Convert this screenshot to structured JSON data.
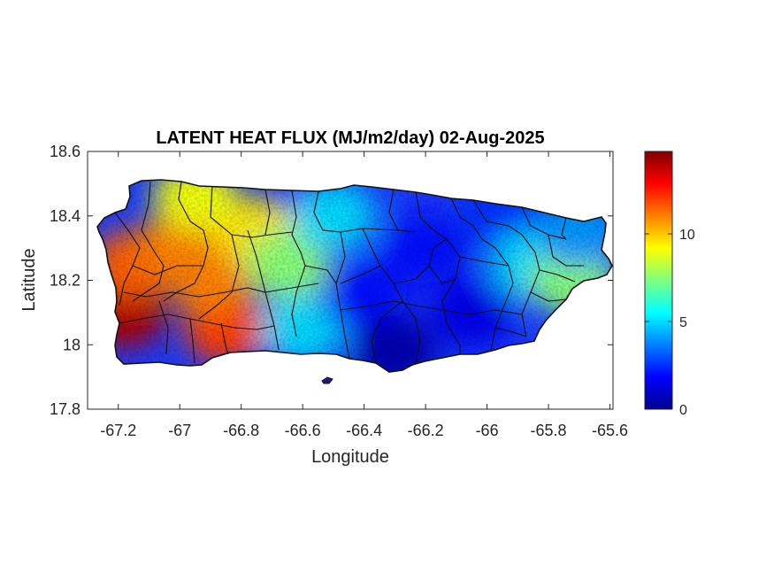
{
  "chart_data": {
    "type": "heatmap",
    "title": "LATENT HEAT FLUX (MJ/m2/day) 02-Aug-2025",
    "xlabel": "Longitude",
    "ylabel": "Latitude",
    "xlim": [
      -67.3,
      -65.59
    ],
    "ylim": [
      17.8,
      18.6
    ],
    "xticks": [
      "-67.2",
      "-67",
      "-66.8",
      "-66.6",
      "-66.4",
      "-66.2",
      "-66",
      "-65.8",
      "-65.6"
    ],
    "xtick_values": [
      -67.2,
      -67.0,
      -66.8,
      -66.6,
      -66.4,
      -66.2,
      -66.0,
      -65.8,
      -65.6
    ],
    "yticks": [
      "17.8",
      "18",
      "18.2",
      "18.4",
      "18.6"
    ],
    "ytick_values": [
      17.8,
      18.0,
      18.2,
      18.4,
      18.6
    ],
    "colorbar": {
      "range": [
        0,
        14.7
      ],
      "ticks": [
        "0",
        "5",
        "10"
      ],
      "tick_values": [
        0,
        5,
        10
      ],
      "colormap": "jet"
    },
    "region": "Puerto Rico",
    "field_samples": [
      {
        "lon": -67.18,
        "lat": 18.1,
        "value": 14
      },
      {
        "lon": -67.15,
        "lat": 18.25,
        "value": 11.5
      },
      {
        "lon": -67.0,
        "lat": 18.3,
        "value": 11
      },
      {
        "lon": -66.85,
        "lat": 18.05,
        "value": 12
      },
      {
        "lon": -66.9,
        "lat": 18.2,
        "value": 11
      },
      {
        "lon": -66.75,
        "lat": 18.35,
        "value": 9.5
      },
      {
        "lon": -66.95,
        "lat": 18.46,
        "value": 9
      },
      {
        "lon": -66.65,
        "lat": 18.25,
        "value": 7.5
      },
      {
        "lon": -66.6,
        "lat": 18.05,
        "value": 5
      },
      {
        "lon": -66.5,
        "lat": 18.4,
        "value": 5
      },
      {
        "lon": -66.4,
        "lat": 18.15,
        "value": 2
      },
      {
        "lon": -66.3,
        "lat": 17.98,
        "value": 0.5
      },
      {
        "lon": -66.2,
        "lat": 18.3,
        "value": 2
      },
      {
        "lon": -66.05,
        "lat": 18.1,
        "value": 1.5
      },
      {
        "lon": -65.95,
        "lat": 18.4,
        "value": 2.5
      },
      {
        "lon": -65.85,
        "lat": 18.25,
        "value": 5
      },
      {
        "lon": -65.72,
        "lat": 18.2,
        "value": 7.5
      },
      {
        "lon": -65.7,
        "lat": 18.35,
        "value": 4
      }
    ]
  }
}
